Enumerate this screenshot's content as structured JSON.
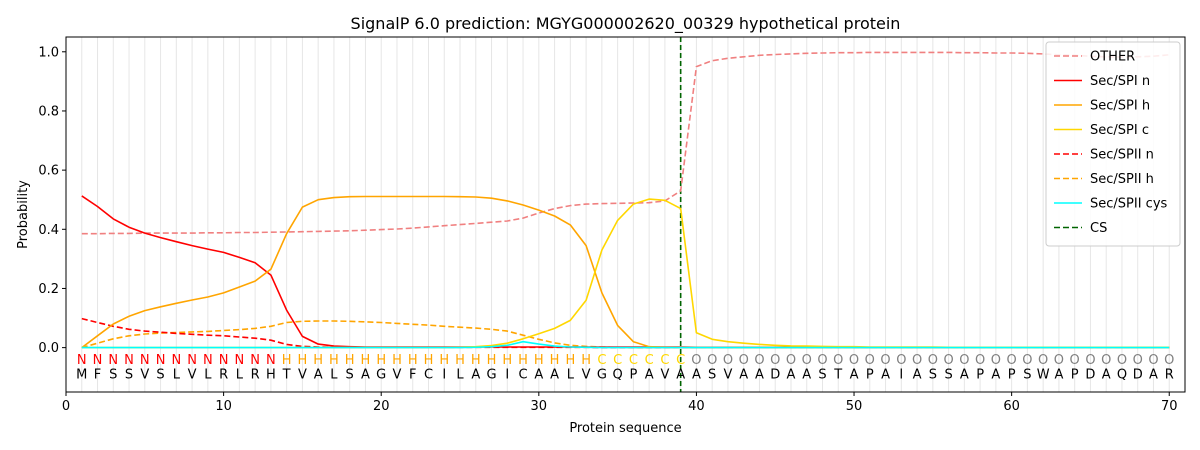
{
  "chart_data": {
    "type": "line",
    "title": "SignalP 6.0 prediction: MGYG000002620_00329 hypothetical protein",
    "xlabel": "Protein sequence",
    "ylabel": "Probability",
    "xlim": [
      0,
      71
    ],
    "ylim": [
      -0.15,
      1.05
    ],
    "xticks": [
      0,
      10,
      20,
      30,
      40,
      50,
      60,
      70
    ],
    "yticks": [
      0.0,
      0.2,
      0.4,
      0.6,
      0.8,
      1.0
    ],
    "xtick_labels": [
      "0",
      "10",
      "20",
      "30",
      "40",
      "50",
      "60",
      "70"
    ],
    "ytick_labels": [
      "0.0",
      "0.2",
      "0.4",
      "0.6",
      "0.8",
      "1.0"
    ],
    "grid": "vertical lines at each residue",
    "legend_position": "top-right",
    "sequence": [
      "M",
      "F",
      "S",
      "S",
      "V",
      "S",
      "L",
      "V",
      "L",
      "R",
      "L",
      "R",
      "H",
      "T",
      "V",
      "A",
      "L",
      "S",
      "A",
      "G",
      "V",
      "F",
      "C",
      "I",
      "L",
      "A",
      "G",
      "I",
      "C",
      "A",
      "A",
      "L",
      "V",
      "G",
      "Q",
      "P",
      "A",
      "V",
      "A",
      "A",
      "S",
      "V",
      "A",
      "A",
      "D",
      "A",
      "A",
      "S",
      "T",
      "A",
      "P",
      "A",
      "I",
      "A",
      "S",
      "S",
      "A",
      "P",
      "A",
      "P",
      "S",
      "W",
      "A",
      "P",
      "D",
      "A",
      "Q",
      "D",
      "A",
      "R"
    ],
    "labels": [
      "N",
      "N",
      "N",
      "N",
      "N",
      "N",
      "N",
      "N",
      "N",
      "N",
      "N",
      "N",
      "N",
      "H",
      "H",
      "H",
      "H",
      "H",
      "H",
      "H",
      "H",
      "H",
      "H",
      "H",
      "H",
      "H",
      "H",
      "H",
      "H",
      "H",
      "H",
      "H",
      "H",
      "C",
      "C",
      "C",
      "C",
      "C",
      "C",
      "O",
      "O",
      "O",
      "O",
      "O",
      "O",
      "O",
      "O",
      "O",
      "O",
      "O",
      "O",
      "O",
      "O",
      "O",
      "O",
      "O",
      "O",
      "O",
      "O",
      "O",
      "O",
      "O",
      "O",
      "O",
      "O",
      "O",
      "O",
      "O",
      "O",
      "O"
    ],
    "label_colors": {
      "N": "#ff0000",
      "H": "#ffa500",
      "C": "#ffd700",
      "O": "#808080"
    },
    "cleavage_site": 39,
    "series": [
      {
        "name": "OTHER",
        "color": "#f08080",
        "dash": "dashed",
        "values": [
          0.385,
          0.385,
          0.386,
          0.386,
          0.387,
          0.387,
          0.387,
          0.387,
          0.388,
          0.388,
          0.389,
          0.389,
          0.39,
          0.391,
          0.392,
          0.393,
          0.394,
          0.395,
          0.397,
          0.399,
          0.401,
          0.404,
          0.408,
          0.412,
          0.416,
          0.42,
          0.424,
          0.428,
          0.438,
          0.455,
          0.47,
          0.48,
          0.485,
          0.487,
          0.488,
          0.489,
          0.49,
          0.496,
          0.53,
          0.95,
          0.97,
          0.978,
          0.983,
          0.988,
          0.991,
          0.993,
          0.995,
          0.996,
          0.997,
          0.997,
          0.998,
          0.998,
          0.998,
          0.998,
          0.998,
          0.998,
          0.997,
          0.997,
          0.996,
          0.996,
          0.995,
          0.993,
          0.99,
          0.988,
          0.985,
          0.983,
          0.982,
          0.983,
          0.985,
          0.99
        ]
      },
      {
        "name": "Sec/SPI n",
        "color": "#ff0000",
        "dash": "solid",
        "values": [
          0.513,
          0.477,
          0.435,
          0.407,
          0.387,
          0.372,
          0.358,
          0.345,
          0.333,
          0.322,
          0.305,
          0.287,
          0.245,
          0.127,
          0.038,
          0.012,
          0.005,
          0.003,
          0.002,
          0.002,
          0.002,
          0.002,
          0.002,
          0.002,
          0.002,
          0.002,
          0.002,
          0.002,
          0.002,
          0.002,
          0.002,
          0.002,
          0.002,
          0.002,
          0.002,
          0.002,
          0.002,
          0.002,
          0.002,
          0.001,
          0.001,
          0.001,
          0.001,
          0.001,
          0.001,
          0.001,
          0.001,
          0.001,
          0.001,
          0.001,
          0.001,
          0.001,
          0.001,
          0.001,
          0.001,
          0.001,
          0.001,
          0.001,
          0.001,
          0.001,
          0.001,
          0.001,
          0.001,
          0.001,
          0.001,
          0.001,
          0.001,
          0.001,
          0.001,
          0.001
        ]
      },
      {
        "name": "Sec/SPI h",
        "color": "#ffa500",
        "dash": "solid",
        "values": [
          0.0,
          0.04,
          0.08,
          0.106,
          0.125,
          0.138,
          0.15,
          0.161,
          0.171,
          0.185,
          0.205,
          0.225,
          0.265,
          0.385,
          0.475,
          0.5,
          0.507,
          0.51,
          0.511,
          0.511,
          0.511,
          0.511,
          0.511,
          0.511,
          0.51,
          0.509,
          0.505,
          0.496,
          0.482,
          0.465,
          0.445,
          0.415,
          0.345,
          0.185,
          0.075,
          0.02,
          0.003,
          0.001,
          0.0,
          0.0,
          0.0,
          0.0,
          0.0,
          0.0,
          0.0,
          0.0,
          0.0,
          0.0,
          0.0,
          0.0,
          0.0,
          0.0,
          0.0,
          0.0,
          0.0,
          0.0,
          0.0,
          0.0,
          0.0,
          0.0,
          0.0,
          0.0,
          0.0,
          0.0,
          0.0,
          0.0,
          0.0,
          0.0,
          0.0,
          0.0
        ]
      },
      {
        "name": "Sec/SPI c",
        "color": "#ffd700",
        "dash": "solid",
        "values": [
          0.0,
          0.0,
          0.0,
          0.0,
          0.0,
          0.0,
          0.0,
          0.0,
          0.0,
          0.0,
          0.0,
          0.0,
          0.0,
          0.0,
          0.0,
          0.0,
          0.0,
          0.0,
          0.0,
          0.0,
          0.0,
          0.0,
          0.0,
          0.0,
          0.001,
          0.003,
          0.007,
          0.015,
          0.03,
          0.047,
          0.065,
          0.092,
          0.16,
          0.33,
          0.43,
          0.485,
          0.502,
          0.498,
          0.47,
          0.05,
          0.028,
          0.02,
          0.015,
          0.011,
          0.008,
          0.006,
          0.005,
          0.004,
          0.003,
          0.003,
          0.002,
          0.002,
          0.002,
          0.002,
          0.002,
          0.001,
          0.001,
          0.001,
          0.001,
          0.001,
          0.001,
          0.001,
          0.001,
          0.001,
          0.001,
          0.001,
          0.001,
          0.001,
          0.001,
          0.001
        ]
      },
      {
        "name": "Sec/SPII n",
        "color": "#ff0000",
        "dash": "dashed",
        "values": [
          0.098,
          0.085,
          0.072,
          0.062,
          0.056,
          0.052,
          0.048,
          0.045,
          0.042,
          0.04,
          0.036,
          0.032,
          0.025,
          0.011,
          0.004,
          0.002,
          0.001,
          0.001,
          0.001,
          0.001,
          0.001,
          0.001,
          0.001,
          0.001,
          0.001,
          0.001,
          0.001,
          0.001,
          0.001,
          0.001,
          0.001,
          0.001,
          0.001,
          0.0,
          0.0,
          0.0,
          0.0,
          0.0,
          0.0,
          0.0,
          0.0,
          0.0,
          0.0,
          0.0,
          0.0,
          0.0,
          0.0,
          0.0,
          0.0,
          0.0,
          0.0,
          0.0,
          0.0,
          0.0,
          0.0,
          0.0,
          0.0,
          0.0,
          0.0,
          0.0,
          0.0,
          0.0,
          0.0,
          0.0,
          0.0,
          0.0,
          0.0,
          0.0,
          0.0,
          0.0
        ]
      },
      {
        "name": "Sec/SPII h",
        "color": "#ffa500",
        "dash": "dashed",
        "values": [
          0.0,
          0.015,
          0.03,
          0.04,
          0.046,
          0.049,
          0.051,
          0.053,
          0.055,
          0.058,
          0.061,
          0.065,
          0.072,
          0.085,
          0.089,
          0.09,
          0.09,
          0.089,
          0.087,
          0.085,
          0.082,
          0.079,
          0.076,
          0.072,
          0.069,
          0.066,
          0.062,
          0.056,
          0.042,
          0.028,
          0.016,
          0.008,
          0.004,
          0.002,
          0.001,
          0.0,
          0.0,
          0.0,
          0.0,
          0.0,
          0.0,
          0.0,
          0.0,
          0.0,
          0.0,
          0.0,
          0.0,
          0.0,
          0.0,
          0.0,
          0.0,
          0.0,
          0.0,
          0.0,
          0.0,
          0.0,
          0.0,
          0.0,
          0.0,
          0.0,
          0.0,
          0.0,
          0.0,
          0.0,
          0.0,
          0.0,
          0.0,
          0.0,
          0.0,
          0.0
        ]
      },
      {
        "name": "Sec/SPII cys",
        "color": "#00ffff",
        "dash": "solid",
        "values": [
          0.0,
          0.0,
          0.0,
          0.0,
          0.0,
          0.0,
          0.0,
          0.0,
          0.0,
          0.0,
          0.0,
          0.0,
          0.0,
          0.0,
          0.0,
          0.0,
          0.0,
          0.0,
          0.0,
          0.0,
          0.0,
          0.0,
          0.0,
          0.0,
          0.0,
          0.001,
          0.003,
          0.008,
          0.02,
          0.012,
          0.005,
          0.002,
          0.001,
          0.0,
          0.0,
          0.0,
          0.0,
          0.0,
          0.0,
          0.0,
          0.0,
          0.0,
          0.0,
          0.0,
          0.0,
          0.0,
          0.0,
          0.0,
          0.0,
          0.0,
          0.0,
          0.0,
          0.0,
          0.0,
          0.0,
          0.0,
          0.0,
          0.0,
          0.0,
          0.0,
          0.0,
          0.0,
          0.0,
          0.0,
          0.0,
          0.0,
          0.0,
          0.0,
          0.0,
          0.0
        ]
      }
    ],
    "cs_legend": {
      "name": "CS",
      "color": "#006400",
      "dash": "dashed"
    }
  }
}
